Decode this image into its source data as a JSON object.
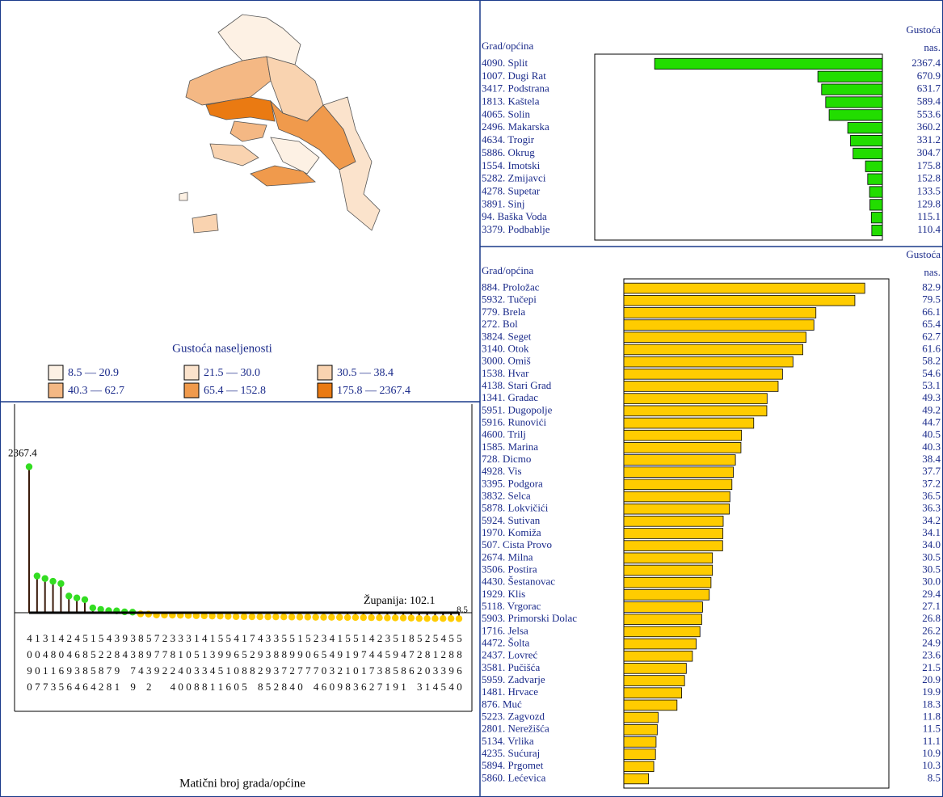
{
  "map": {
    "legend_title": "Gustoća naseljenosti",
    "legend": [
      {
        "label": "8.5 — 20.9",
        "color": "#fdf1e4"
      },
      {
        "label": "21.5 — 30.0",
        "color": "#fbe3cc"
      },
      {
        "label": "30.5 — 38.4",
        "color": "#f9d3b0"
      },
      {
        "label": "40.3 — 62.7",
        "color": "#f4b884"
      },
      {
        "label": "65.4 — 152.8",
        "color": "#f09a4c"
      },
      {
        "label": "175.8 — 2367.4",
        "color": "#ea7a12"
      }
    ]
  },
  "chart_data": [
    {
      "type": "hbar",
      "category_header": "Grad/općina",
      "value_header": [
        "Gustoća",
        "nas."
      ],
      "categories": [
        "4090. Split",
        "1007. Dugi Rat",
        "3417. Podstrana",
        "1813. Kaštela",
        "4065. Solin",
        "2496. Makarska",
        "4634. Trogir",
        "5886. Okrug",
        "1554. Imotski",
        "5282. Zmijavci",
        "4278. Supetar",
        "3891. Sinj",
        "94. Baška Voda",
        "3379. Podbablje"
      ],
      "values": [
        2367.4,
        670.9,
        631.7,
        589.4,
        553.6,
        360.2,
        331.2,
        304.7,
        175.8,
        152.8,
        133.5,
        129.8,
        115.1,
        110.4
      ],
      "color": "#22dd00",
      "bar_anchor": "right",
      "xlim": [
        0,
        2990
      ]
    },
    {
      "type": "hbar",
      "category_header": "Grad/općina",
      "value_header": [
        "Gustoća",
        "nas."
      ],
      "categories": [
        "884. Proložac",
        "5932. Tučepi",
        "779. Brela",
        "272. Bol",
        "3824. Seget",
        "3140. Otok",
        "3000. Omiš",
        "1538. Hvar",
        "4138. Stari Grad",
        "1341. Gradac",
        "5951. Dugopolje",
        "5916. Runovići",
        "4600. Trilj",
        "1585. Marina",
        "728. Dicmo",
        "4928. Vis",
        "3395. Podgora",
        "3832. Selca",
        "5878. Lokvičići",
        "5924. Sutivan",
        "1970. Komiža",
        "507. Cista Provo",
        "2674. Milna",
        "3506. Postira",
        "4430. Šestanovac",
        "1929. Klis",
        "5118. Vrgorac",
        "5903. Primorski Dolac",
        "1716. Jelsa",
        "4472. Šolta",
        "2437. Lovreć",
        "3581. Pučišća",
        "5959. Zadvarje",
        "1481. Hrvace",
        "876. Muć",
        "5223. Zagvozd",
        "2801. Nerežišća",
        "5134. Vrlika",
        "4235. Sućuraj",
        "5894. Prgomet",
        "5860. Lećevica"
      ],
      "values": [
        82.9,
        79.5,
        66.1,
        65.4,
        62.7,
        61.6,
        58.2,
        54.6,
        53.1,
        49.3,
        49.2,
        44.7,
        40.5,
        40.3,
        38.4,
        37.7,
        37.2,
        36.5,
        36.3,
        34.2,
        34.1,
        34.0,
        30.5,
        30.5,
        30.0,
        29.4,
        27.1,
        26.8,
        26.2,
        24.9,
        23.6,
        21.5,
        20.9,
        19.9,
        18.3,
        11.8,
        11.5,
        11.1,
        10.9,
        10.3,
        8.5
      ],
      "value_labels": [
        "82.9",
        "79.5",
        "66.1",
        "65.4",
        "62.7",
        "61.6",
        "58.2",
        "54.6",
        "53.1",
        "49.3",
        "49.2",
        "44.7",
        "40.5",
        "40.3",
        "38.4",
        "37.7",
        "37.2",
        "36.5",
        "36.3",
        "34.2",
        "34.1",
        "34.0",
        "30.5",
        "30.5",
        "30.0",
        "29.4",
        "27.1",
        "26.8",
        "26.2",
        "24.9",
        "23.6",
        "21.5",
        "20.9",
        "19.9",
        "18.3",
        "11.8",
        "11.5",
        "11.1",
        "10.9",
        "10.3",
        "8.5"
      ],
      "color": "#ffcc00",
      "bar_anchor": "left",
      "xlim": [
        0,
        91.2
      ]
    },
    {
      "type": "lollipop",
      "x_label": "Matični broj grada/općine",
      "categories": [
        "4090",
        "1007",
        "3417",
        "1813",
        "4065",
        "2496",
        "4634",
        "5886",
        "1554",
        "5282",
        "4278",
        "3891",
        "94",
        "3379",
        "884",
        "5932",
        "779",
        "272",
        "3824",
        "3140",
        "3000",
        "1538",
        "4138",
        "1341",
        "5951",
        "5916",
        "4600",
        "1585",
        "728",
        "4928",
        "3395",
        "3832",
        "5878",
        "5924",
        "1970",
        "507",
        "2674",
        "3506",
        "4430",
        "1929",
        "5118",
        "5903",
        "1716",
        "4472",
        "2437",
        "3581",
        "5959",
        "1481",
        "876",
        "5223",
        "2801",
        "5134",
        "4235",
        "5894",
        "5860"
      ],
      "values": [
        2367.4,
        670.9,
        631.7,
        589.4,
        553.6,
        360.2,
        331.2,
        304.7,
        175.8,
        152.8,
        133.5,
        129.8,
        115.1,
        110.4,
        82.9,
        79.5,
        66.1,
        65.4,
        62.7,
        61.6,
        58.2,
        54.6,
        53.1,
        49.3,
        49.2,
        44.7,
        40.5,
        40.3,
        38.4,
        37.7,
        37.2,
        36.5,
        36.3,
        34.2,
        34.1,
        34.0,
        30.5,
        30.5,
        30.0,
        29.4,
        27.1,
        26.8,
        26.2,
        24.9,
        23.6,
        21.5,
        20.9,
        19.9,
        18.3,
        11.8,
        11.5,
        11.1,
        10.9,
        10.3,
        8.5
      ],
      "reference": {
        "label": "Županija:",
        "value": 102.1
      },
      "above_color": "#33dd22",
      "below_color": "#ffcc00",
      "stem_color": "#3a1a0a",
      "ylim": [
        -1430,
        3340
      ]
    }
  ]
}
